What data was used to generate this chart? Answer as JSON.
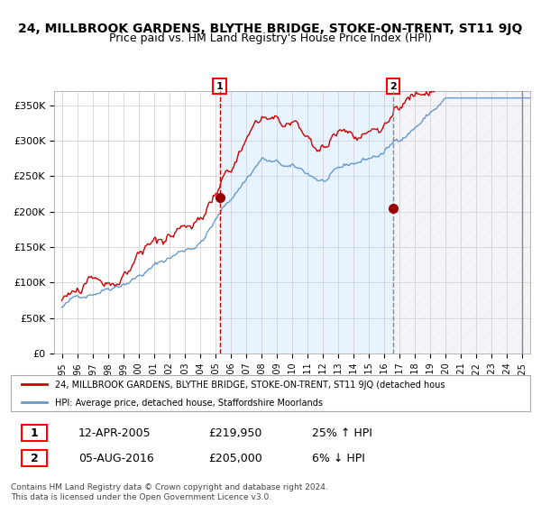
{
  "title": "24, MILLBROOK GARDENS, BLYTHE BRIDGE, STOKE-ON-TRENT, ST11 9JQ",
  "subtitle": "Price paid vs. HM Land Registry's House Price Index (HPI)",
  "legend_line1": "24, MILLBROOK GARDENS, BLYTHE BRIDGE, STOKE-ON-TRENT, ST11 9JQ (detached hous",
  "legend_line2": "HPI: Average price, detached house, Staffordshire Moorlands",
  "event1_label": "1",
  "event1_date": "12-APR-2005",
  "event1_price": "£219,950",
  "event1_pct": "25% ↑ HPI",
  "event2_label": "2",
  "event2_date": "05-AUG-2016",
  "event2_price": "£205,000",
  "event2_pct": "6% ↓ HPI",
  "footer": "Contains HM Land Registry data © Crown copyright and database right 2024.\nThis data is licensed under the Open Government Licence v3.0.",
  "ylim": [
    0,
    370000
  ],
  "yticks": [
    0,
    50000,
    100000,
    150000,
    200000,
    250000,
    300000,
    350000
  ],
  "ytick_labels": [
    "£0",
    "£50K",
    "£100K",
    "£150K",
    "£200K",
    "£250K",
    "£300K",
    "£350K"
  ],
  "red_line_color": "#cc0000",
  "blue_line_color": "#6699cc",
  "event1_x_year": 2005.28,
  "event2_x_year": 2016.58,
  "marker_color": "#990000",
  "event1_marker_y": 219950,
  "event2_marker_y": 205000,
  "shade_color": "#ddeeff",
  "hatch_color": "#aaaacc",
  "grid_color": "#cccccc",
  "bg_color": "#ffffff",
  "title_fontsize": 10,
  "subtitle_fontsize": 9,
  "tick_fontsize": 8,
  "xlim_start": 1994.5,
  "xlim_end": 2025.5
}
